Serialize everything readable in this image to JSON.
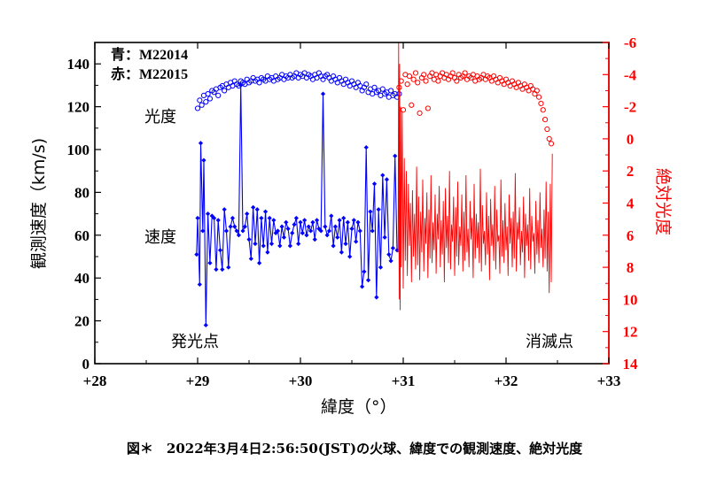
{
  "chart_data": {
    "type": "line",
    "x_axis": {
      "label": "緯度（°）",
      "range": [
        28,
        33
      ],
      "ticks": [
        28,
        29,
        30,
        31,
        32,
        33
      ],
      "tick_labels": [
        "+28",
        "+29",
        "+30",
        "+31",
        "+32",
        "+33"
      ]
    },
    "y_axis_left": {
      "label": "観測速度（km/s)",
      "range": [
        0,
        150
      ],
      "ticks": [
        0,
        20,
        40,
        60,
        80,
        100,
        120,
        140
      ],
      "tick_labels": [
        "0",
        "20",
        "40",
        "60",
        "80",
        "100",
        "120",
        "140"
      ]
    },
    "y_axis_right": {
      "label": "絶対光度",
      "range": [
        -6,
        14
      ],
      "inverted": true,
      "color": "#ff0000",
      "ticks": [
        -6,
        -4,
        -2,
        0,
        2,
        4,
        6,
        8,
        10,
        12,
        14
      ],
      "tick_labels": [
        "-6",
        "-4",
        "-2",
        "0",
        "2",
        "4",
        "6",
        "8",
        "10",
        "12",
        "14"
      ]
    },
    "legend": {
      "blue_label": "青：M22014",
      "red_label": "赤：M22015",
      "position": "top-left"
    },
    "annotations": {
      "brightness": "光度",
      "velocity": "速度",
      "start_point": "発光点",
      "end_point": "消滅点"
    },
    "series": [
      {
        "name": "M22014 速度",
        "color": "#0000ff",
        "axis": "left",
        "style": "line-with-diamonds",
        "x": [
          28.99,
          29.0,
          29.02,
          29.03,
          29.05,
          29.06,
          29.08,
          29.1,
          29.12,
          29.14,
          29.16,
          29.18,
          29.2,
          29.22,
          29.24,
          29.26,
          29.28,
          29.3,
          29.32,
          29.34,
          29.36,
          29.38,
          29.4,
          29.42,
          29.44,
          29.46,
          29.48,
          29.5,
          29.52,
          29.54,
          29.56,
          29.58,
          29.6,
          29.62,
          29.64,
          29.66,
          29.68,
          29.7,
          29.72,
          29.74,
          29.76,
          29.78,
          29.8,
          29.82,
          29.84,
          29.86,
          29.88,
          29.9,
          29.92,
          29.94,
          29.96,
          29.98,
          30.0,
          30.02,
          30.04,
          30.06,
          30.08,
          30.1,
          30.12,
          30.14,
          30.16,
          30.18,
          30.2,
          30.22,
          30.24,
          30.26,
          30.28,
          30.3,
          30.32,
          30.34,
          30.36,
          30.38,
          30.4,
          30.42,
          30.44,
          30.46,
          30.48,
          30.5,
          30.52,
          30.54,
          30.56,
          30.58,
          30.6,
          30.62,
          30.64,
          30.66,
          30.68,
          30.7,
          30.72,
          30.74,
          30.76,
          30.78,
          30.8,
          30.82,
          30.84,
          30.86,
          30.88,
          30.9,
          30.92,
          30.94
        ],
        "y": [
          51,
          68,
          37,
          103,
          62,
          95,
          18,
          70,
          47,
          69,
          68,
          44,
          67,
          53,
          44,
          72,
          62,
          45,
          64,
          68,
          64,
          62,
          60,
          130,
          62,
          64,
          70,
          58,
          49,
          73,
          56,
          72,
          47,
          68,
          55,
          71,
          52,
          68,
          56,
          67,
          61,
          62,
          55,
          64,
          59,
          66,
          63,
          55,
          61,
          65,
          68,
          56,
          66,
          61,
          67,
          60,
          64,
          62,
          66,
          58,
          67,
          63,
          62,
          126,
          64,
          60,
          62,
          69,
          55,
          64,
          59,
          67,
          52,
          68,
          56,
          66,
          50,
          63,
          67,
          57,
          66,
          62,
          36,
          43,
          101,
          39,
          71,
          62,
          84,
          31,
          72,
          45,
          88,
          59,
          86,
          51,
          48,
          54,
          97,
          53
        ]
      },
      {
        "name": "M22014 光度",
        "color": "#0000ff",
        "axis": "right",
        "style": "open-circles",
        "x": [
          29.0,
          29.02,
          29.04,
          29.06,
          29.08,
          29.1,
          29.12,
          29.14,
          29.16,
          29.18,
          29.2,
          29.22,
          29.24,
          29.26,
          29.28,
          29.3,
          29.32,
          29.34,
          29.36,
          29.38,
          29.4,
          29.42,
          29.44,
          29.46,
          29.48,
          29.5,
          29.52,
          29.54,
          29.56,
          29.58,
          29.6,
          29.62,
          29.64,
          29.66,
          29.68,
          29.7,
          29.72,
          29.74,
          29.76,
          29.78,
          29.8,
          29.82,
          29.84,
          29.86,
          29.88,
          29.9,
          29.92,
          29.94,
          29.96,
          29.98,
          30.0,
          30.02,
          30.04,
          30.06,
          30.08,
          30.1,
          30.12,
          30.14,
          30.16,
          30.18,
          30.2,
          30.22,
          30.24,
          30.26,
          30.28,
          30.3,
          30.32,
          30.34,
          30.36,
          30.38,
          30.4,
          30.42,
          30.44,
          30.46,
          30.48,
          30.5,
          30.52,
          30.54,
          30.56,
          30.58,
          30.6,
          30.62,
          30.64,
          30.66,
          30.68,
          30.7,
          30.72,
          30.74,
          30.76,
          30.78,
          30.8,
          30.82,
          30.84,
          30.86,
          30.88,
          30.9,
          30.92,
          30.94,
          30.96
        ],
        "y": [
          -1.9,
          -2.4,
          -2.1,
          -2.7,
          -2.3,
          -2.8,
          -2.5,
          -3.0,
          -2.9,
          -3.1,
          -2.7,
          -3.2,
          -3.3,
          -3.0,
          -3.4,
          -3.2,
          -3.5,
          -3.3,
          -3.6,
          -3.4,
          -3.3,
          -3.6,
          -3.5,
          -3.4,
          -3.7,
          -3.5,
          -3.6,
          -3.8,
          -3.6,
          -3.7,
          -3.5,
          -3.8,
          -3.7,
          -3.6,
          -3.9,
          -3.7,
          -3.8,
          -3.6,
          -3.9,
          -3.7,
          -3.8,
          -4.0,
          -3.7,
          -3.9,
          -3.8,
          -4.0,
          -3.8,
          -3.9,
          -4.1,
          -3.8,
          -4.0,
          -3.9,
          -4.1,
          -3.8,
          -4.0,
          -3.9,
          -3.7,
          -4.0,
          -3.8,
          -4.1,
          -3.9,
          -3.7,
          -3.9,
          -4.0,
          -3.8,
          -3.6,
          -3.9,
          -3.7,
          -3.5,
          -3.8,
          -3.6,
          -3.4,
          -3.7,
          -3.5,
          -3.3,
          -3.6,
          -3.4,
          -3.2,
          -3.5,
          -3.3,
          -3.0,
          -3.2,
          -3.4,
          -2.9,
          -3.1,
          -2.8,
          -3.2,
          -2.9,
          -3.0,
          -2.7,
          -3.1,
          -2.8,
          -2.9,
          -2.6,
          -3.0,
          -2.7,
          -2.8,
          -2.6,
          -2.8
        ]
      },
      {
        "name": "M22015 光度",
        "color": "#ff0000",
        "axis": "right",
        "style": "open-circles",
        "x": [
          30.96,
          30.98,
          31.0,
          31.02,
          31.04,
          31.06,
          31.08,
          31.1,
          31.12,
          31.14,
          31.16,
          31.18,
          31.2,
          31.22,
          31.24,
          31.26,
          31.28,
          31.3,
          31.32,
          31.34,
          31.36,
          31.38,
          31.4,
          31.42,
          31.44,
          31.46,
          31.48,
          31.5,
          31.52,
          31.54,
          31.56,
          31.58,
          31.6,
          31.62,
          31.64,
          31.66,
          31.68,
          31.7,
          31.72,
          31.74,
          31.76,
          31.78,
          31.8,
          31.82,
          31.84,
          31.86,
          31.88,
          31.9,
          31.92,
          31.94,
          31.96,
          31.98,
          32.0,
          32.02,
          32.04,
          32.06,
          32.08,
          32.1,
          32.12,
          32.14,
          32.16,
          32.18,
          32.2,
          32.22,
          32.24,
          32.26,
          32.28,
          32.3,
          32.32,
          32.34,
          32.36,
          32.38,
          32.4,
          32.42,
          32.44
        ],
        "y": [
          -3.2,
          -3.6,
          -1.8,
          -4.0,
          -3.4,
          -3.9,
          -2.1,
          -3.7,
          -4.1,
          -3.5,
          -1.6,
          -3.8,
          -4.0,
          -3.6,
          -1.9,
          -3.9,
          -4.1,
          -3.7,
          -4.0,
          -3.6,
          -3.9,
          -4.1,
          -3.8,
          -4.0,
          -3.7,
          -3.9,
          -4.1,
          -3.8,
          -3.6,
          -4.0,
          -3.8,
          -3.9,
          -4.1,
          -3.7,
          -3.9,
          -3.8,
          -4.0,
          -3.6,
          -3.9,
          -3.7,
          -3.8,
          -4.0,
          -3.7,
          -3.9,
          -3.8,
          -3.6,
          -3.9,
          -3.7,
          -3.5,
          -3.8,
          -3.6,
          -3.4,
          -3.7,
          -3.5,
          -3.3,
          -3.6,
          -3.4,
          -3.2,
          -3.5,
          -3.3,
          -3.1,
          -3.4,
          -3.2,
          -3.0,
          -3.3,
          -3.1,
          -2.8,
          -3.0,
          -2.6,
          -2.2,
          -1.8,
          -1.2,
          -0.6,
          0.0,
          0.3
        ]
      },
      {
        "name": "M22015 速度",
        "color": "#ff0000",
        "axis": "left",
        "style": "line",
        "x": [
          30.95,
          30.955,
          30.96,
          30.965,
          30.97,
          30.975,
          30.98,
          30.99,
          31.0,
          31.01,
          31.02,
          31.03,
          31.04,
          31.05,
          31.06,
          31.07,
          31.08,
          31.09,
          31.1,
          31.11,
          31.12,
          31.13,
          31.14,
          31.15,
          31.16,
          31.17,
          31.18,
          31.19,
          31.2,
          31.21,
          31.22,
          31.23,
          31.24,
          31.25,
          31.26,
          31.27,
          31.28,
          31.29,
          31.3,
          31.31,
          31.32,
          31.33,
          31.34,
          31.35,
          31.36,
          31.37,
          31.38,
          31.39,
          31.4,
          31.41,
          31.42,
          31.43,
          31.44,
          31.45,
          31.46,
          31.47,
          31.48,
          31.49,
          31.5,
          31.51,
          31.52,
          31.53,
          31.54,
          31.55,
          31.56,
          31.57,
          31.58,
          31.59,
          31.6,
          31.61,
          31.62,
          31.63,
          31.64,
          31.65,
          31.66,
          31.67,
          31.68,
          31.69,
          31.7,
          31.71,
          31.72,
          31.73,
          31.74,
          31.75,
          31.76,
          31.77,
          31.78,
          31.79,
          31.8,
          31.81,
          31.82,
          31.83,
          31.84,
          31.85,
          31.86,
          31.87,
          31.88,
          31.89,
          31.9,
          31.91,
          31.92,
          31.93,
          31.94,
          31.95,
          31.96,
          31.97,
          31.98,
          31.99,
          32.0,
          32.01,
          32.02,
          32.03,
          32.04,
          32.05,
          32.06,
          32.07,
          32.08,
          32.09,
          32.1,
          32.11,
          32.12,
          32.13,
          32.14,
          32.15,
          32.16,
          32.17,
          32.18,
          32.19,
          32.2,
          32.21,
          32.22,
          32.23,
          32.24,
          32.25,
          32.26,
          32.27,
          32.28,
          32.29,
          32.3,
          32.31,
          32.32,
          32.33,
          32.34,
          32.35,
          32.36,
          32.37,
          32.38,
          32.39,
          32.4,
          32.41,
          32.42,
          32.43,
          32.44,
          32.45
        ],
        "y": [
          52,
          150,
          30,
          140,
          25,
          120,
          45,
          118,
          35,
          96,
          48,
          90,
          41,
          84,
          55,
          75,
          38,
          81,
          50,
          70,
          44,
          92,
          46,
          78,
          39,
          71,
          52,
          86,
          43,
          68,
          56,
          80,
          40,
          72,
          49,
          88,
          47,
          66,
          53,
          79,
          42,
          70,
          58,
          83,
          45,
          67,
          51,
          76,
          38,
          82,
          54,
          69,
          47,
          90,
          44,
          65,
          57,
          78,
          41,
          73,
          50,
          85,
          46,
          64,
          55,
          79,
          43,
          71,
          48,
          88,
          52,
          63,
          45,
          76,
          58,
          68,
          40,
          84,
          49,
          70,
          54,
          66,
          47,
          91,
          43,
          74,
          56,
          62,
          46,
          80,
          51,
          69,
          39,
          77,
          55,
          65,
          48,
          83,
          44,
          72,
          57,
          60,
          42,
          86,
          50,
          67,
          47,
          75,
          53,
          64,
          41,
          79,
          56,
          68,
          45,
          71,
          49,
          89,
          43,
          66,
          58,
          73,
          46,
          62,
          52,
          78,
          40,
          70,
          55,
          65,
          48,
          82,
          44,
          69,
          57,
          61,
          42,
          76,
          51,
          67,
          47,
          80,
          54,
          63,
          45,
          72,
          49,
          85,
          43,
          71,
          33,
          84,
          38,
          98
        ]
      }
    ]
  },
  "caption": "図＊　2022年3月4日2:56:50(JST)の火球、緯度での観測速度、絶対光度"
}
